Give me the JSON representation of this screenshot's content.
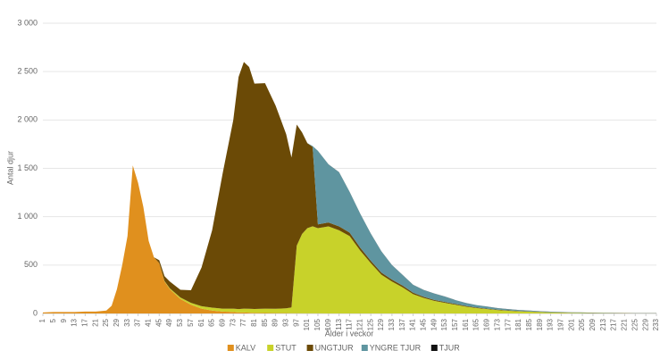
{
  "chart_data": {
    "type": "stacked-area",
    "x_label": "Ålder i veckor",
    "y_label": "Antal djur",
    "x": [
      1,
      5,
      9,
      13,
      17,
      21,
      25,
      27,
      29,
      31,
      33,
      35,
      37,
      39,
      41,
      43,
      45,
      47,
      49,
      53,
      57,
      61,
      65,
      69,
      73,
      75,
      77,
      79,
      81,
      85,
      89,
      93,
      95,
      97,
      99,
      101,
      103,
      105,
      109,
      113,
      117,
      121,
      125,
      129,
      133,
      137,
      141,
      145,
      149,
      153,
      157,
      161,
      165,
      169,
      173,
      177,
      181,
      185,
      189,
      193,
      197,
      201,
      205,
      209,
      213,
      217,
      221,
      225,
      229,
      233
    ],
    "series": [
      {
        "name": "KALV",
        "color": "#e0901e",
        "values": [
          10,
          15,
          15,
          15,
          20,
          20,
          30,
          80,
          250,
          500,
          800,
          1530,
          1350,
          1100,
          750,
          580,
          520,
          330,
          250,
          150,
          90,
          50,
          30,
          20,
          15,
          10,
          10,
          8,
          6,
          5,
          4,
          3,
          2,
          2,
          1,
          1,
          1,
          1,
          0,
          0,
          0,
          0,
          0,
          0,
          0,
          0,
          0,
          0,
          0,
          0,
          0,
          0,
          0,
          0,
          0,
          0,
          0,
          0,
          0,
          0,
          0,
          0,
          0,
          0,
          0,
          0,
          0,
          0,
          0,
          0
        ]
      },
      {
        "name": "STUT",
        "color": "#c8d22a",
        "values": [
          0,
          0,
          0,
          0,
          0,
          0,
          0,
          0,
          0,
          0,
          0,
          0,
          0,
          0,
          0,
          0,
          0,
          5,
          10,
          15,
          20,
          25,
          30,
          30,
          35,
          35,
          40,
          40,
          40,
          45,
          45,
          50,
          60,
          700,
          820,
          880,
          900,
          880,
          900,
          860,
          800,
          650,
          520,
          400,
          330,
          270,
          200,
          160,
          130,
          110,
          90,
          70,
          55,
          45,
          35,
          28,
          22,
          18,
          14,
          10,
          8,
          6,
          5,
          4,
          3,
          2,
          2,
          1,
          1,
          1
        ]
      },
      {
        "name": "UNGTJUR",
        "color": "#6b4a06",
        "values": [
          0,
          0,
          0,
          0,
          0,
          0,
          0,
          0,
          0,
          0,
          0,
          0,
          0,
          0,
          0,
          0,
          30,
          50,
          70,
          80,
          130,
          400,
          800,
          1400,
          1950,
          2400,
          2550,
          2500,
          2330,
          2330,
          2100,
          1800,
          1550,
          1250,
          1050,
          880,
          820,
          40,
          40,
          40,
          35,
          30,
          25,
          22,
          20,
          18,
          15,
          12,
          10,
          9,
          8,
          7,
          6,
          5,
          4,
          4,
          3,
          3,
          2,
          2,
          2,
          1,
          1,
          1,
          1,
          1,
          1,
          0,
          0,
          0
        ]
      },
      {
        "name": "YNGRE TJUR",
        "color": "#5f95a0",
        "values": [
          0,
          0,
          0,
          0,
          0,
          0,
          0,
          0,
          0,
          0,
          0,
          0,
          0,
          0,
          0,
          0,
          0,
          0,
          0,
          0,
          0,
          0,
          0,
          0,
          0,
          0,
          0,
          0,
          0,
          0,
          0,
          0,
          0,
          0,
          0,
          0,
          10,
          760,
          600,
          560,
          420,
          350,
          280,
          220,
          150,
          110,
          80,
          70,
          65,
          55,
          40,
          30,
          25,
          20,
          15,
          12,
          10,
          8,
          6,
          5,
          4,
          3,
          3,
          2,
          2,
          2,
          1,
          1,
          1,
          1
        ]
      },
      {
        "name": "TJUR",
        "color": "#111111",
        "values": [
          0,
          0,
          0,
          0,
          0,
          0,
          0,
          0,
          0,
          0,
          0,
          0,
          0,
          0,
          0,
          0,
          0,
          0,
          0,
          0,
          0,
          0,
          0,
          0,
          0,
          0,
          0,
          0,
          0,
          0,
          0,
          0,
          0,
          0,
          0,
          0,
          0,
          0,
          1,
          1,
          1,
          1,
          1,
          1,
          1,
          1,
          1,
          1,
          1,
          1,
          1,
          1,
          1,
          1,
          1,
          1,
          1,
          1,
          1,
          1,
          1,
          1,
          1,
          1,
          1,
          1,
          1,
          1,
          1,
          1
        ]
      }
    ],
    "xlim": [
      1,
      233
    ],
    "xticks": [
      1,
      5,
      9,
      13,
      17,
      21,
      25,
      29,
      33,
      37,
      41,
      45,
      49,
      53,
      57,
      61,
      65,
      69,
      73,
      77,
      81,
      85,
      89,
      93,
      97,
      101,
      105,
      109,
      113,
      117,
      121,
      125,
      129,
      133,
      137,
      141,
      145,
      149,
      153,
      157,
      161,
      165,
      169,
      173,
      177,
      181,
      185,
      189,
      193,
      197,
      201,
      205,
      209,
      213,
      217,
      221,
      225,
      229,
      233
    ],
    "ylim": [
      0,
      3000
    ],
    "yticks": [
      0,
      500,
      {
        "value": 1000,
        "label": "1 000"
      },
      {
        "value": 1500,
        "label": "1 500"
      },
      {
        "value": 2000,
        "label": "2 000"
      },
      {
        "value": 2500,
        "label": "2 500"
      },
      {
        "value": 3000,
        "label": "3 000"
      }
    ],
    "grid": true
  }
}
